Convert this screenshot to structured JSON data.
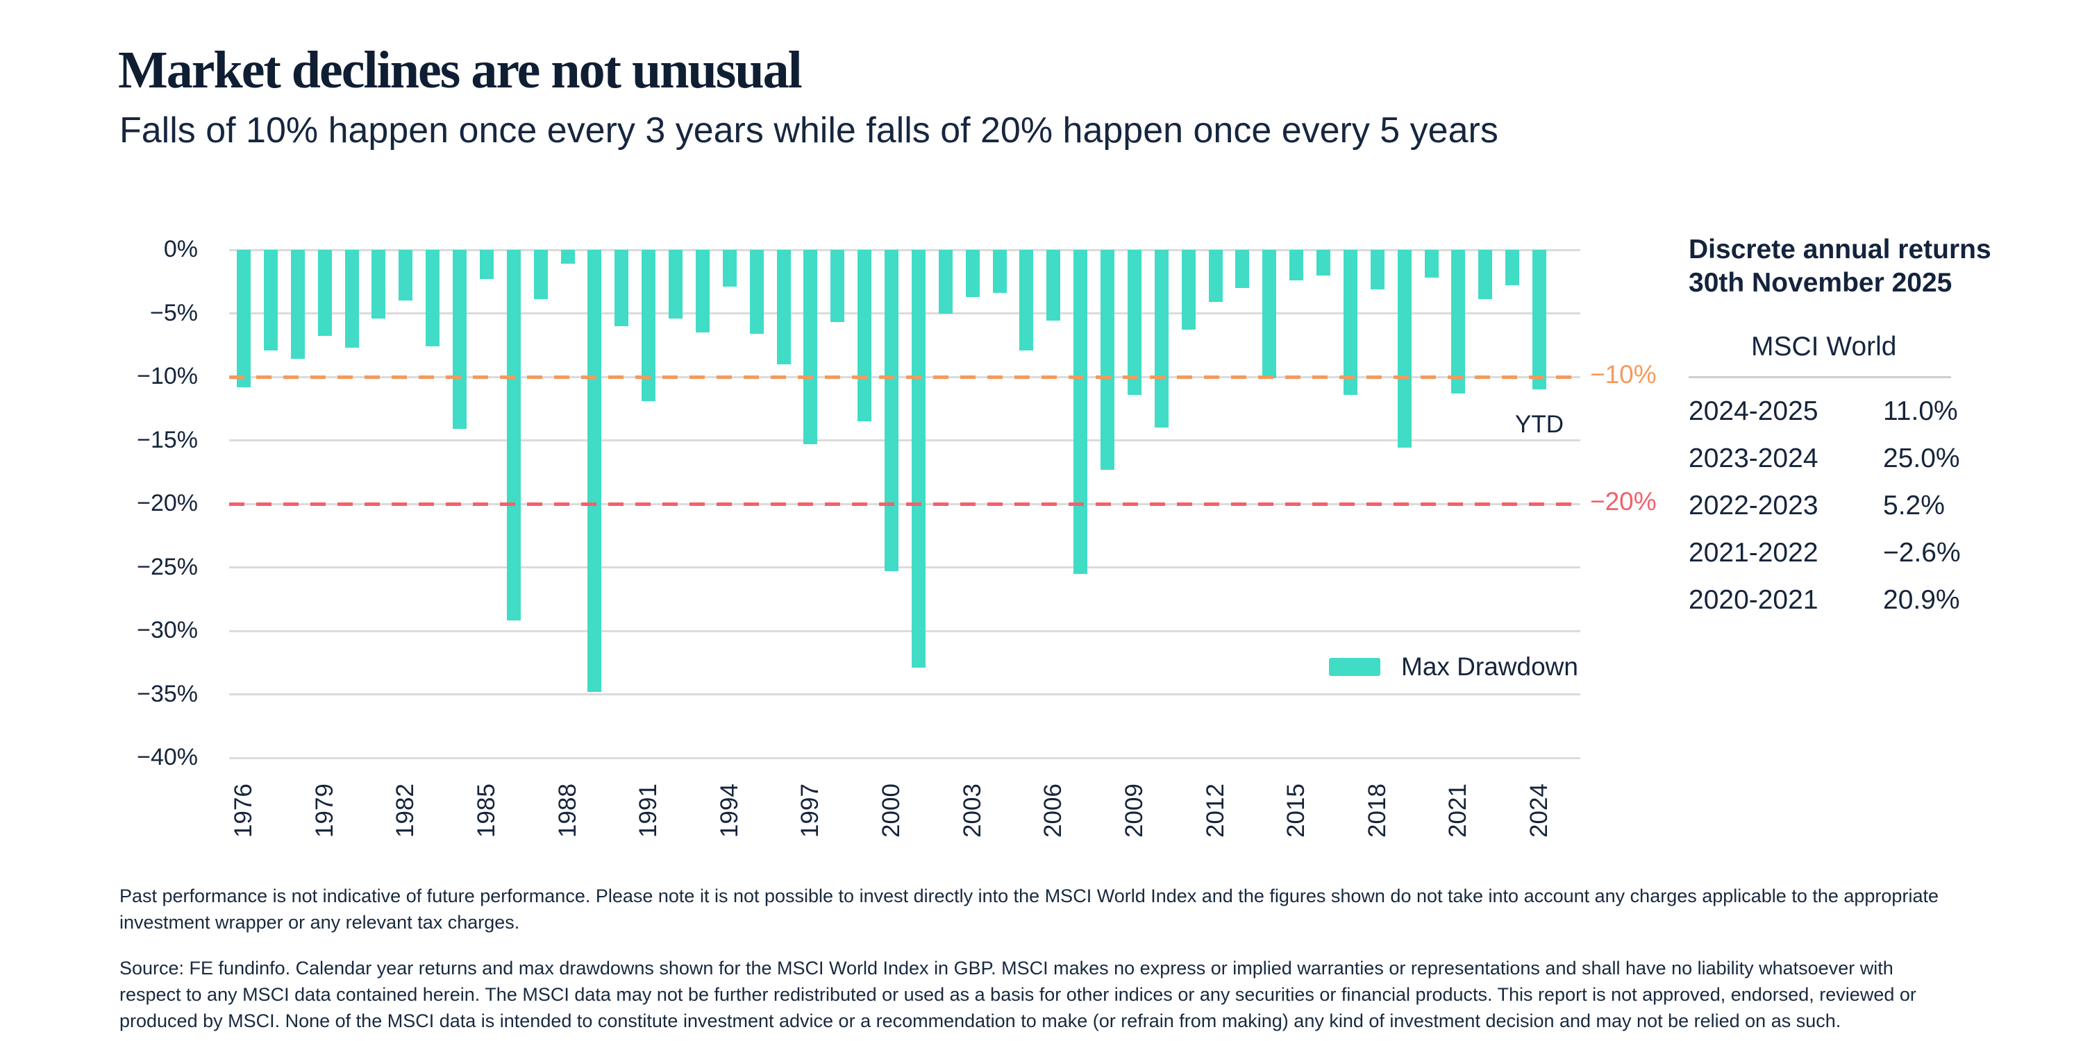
{
  "header": {
    "title": "Market declines are not unusual",
    "subtitle": "Falls of 10% happen once every 3 years while falls of 20% happen once every 5 years"
  },
  "chart_data": {
    "type": "bar",
    "title": "Max drawdown per calendar year, MSCI World Index in GBP",
    "xlabel": "",
    "ylabel": "",
    "ylim": [
      -40,
      0
    ],
    "grid": "horizontal",
    "bar_color": "#40DCC6",
    "gridline_color": "#DBDBDB",
    "y_tick_labels": [
      "0%",
      "−5%",
      "−10%",
      "−15%",
      "−20%",
      "−25%",
      "−30%",
      "−35%",
      "−40%"
    ],
    "x_tick_every": 3,
    "categories": [
      1976,
      1977,
      1978,
      1979,
      1980,
      1981,
      1982,
      1983,
      1984,
      1985,
      1986,
      1987,
      1988,
      1989,
      1990,
      1991,
      1992,
      1993,
      1994,
      1995,
      1996,
      1997,
      1998,
      1999,
      2000,
      2001,
      2002,
      2003,
      2004,
      2005,
      2006,
      2007,
      2008,
      2009,
      2010,
      2011,
      2012,
      2013,
      2014,
      2015,
      2016,
      2017,
      2018,
      2019,
      2020,
      2021,
      2022,
      2023,
      2024
    ],
    "series": [
      {
        "name": "Max Drawdown",
        "values": [
          -10.8,
          -7.9,
          -8.6,
          -6.8,
          -7.7,
          -5.4,
          -4.0,
          -7.6,
          -14.1,
          -2.3,
          -29.2,
          -3.9,
          -1.1,
          -34.8,
          -6.0,
          -11.9,
          -5.4,
          -6.5,
          -2.9,
          -6.6,
          -9.0,
          -15.3,
          -5.7,
          -13.5,
          -25.3,
          -32.9,
          -5.0,
          -3.7,
          -3.4,
          -7.9,
          -5.6,
          -25.5,
          -17.3,
          -11.4,
          -14.0,
          -6.3,
          -4.1,
          -3.0,
          -10.1,
          -2.4,
          -2.0,
          -11.4,
          -3.1,
          -15.6,
          -2.2,
          -11.3,
          -3.9,
          -2.8,
          -11.0
        ]
      }
    ],
    "thresholds": [
      {
        "value": -10,
        "label": "−10%",
        "color": "#F49A5C"
      },
      {
        "value": -20,
        "label": "−20%",
        "color": "#F4606A"
      }
    ],
    "annotations": [
      {
        "text": "YTD",
        "category": 2024
      }
    ],
    "legend": {
      "label": "Max Drawdown",
      "position": "bottom-right"
    }
  },
  "side_table": {
    "title": "Discrete annual returns 30th November 2025",
    "column_header": "MSCI World",
    "rows": [
      {
        "period": "2024-2025",
        "value": "11.0%"
      },
      {
        "period": "2023-2024",
        "value": "25.0%"
      },
      {
        "period": "2022-2023",
        "value": "5.2%"
      },
      {
        "period": "2021-2022",
        "value": "−2.6%"
      },
      {
        "period": "2020-2021",
        "value": "20.9%"
      }
    ]
  },
  "footer": {
    "disclaimer_lines": [
      "Past performance is not indicative of future performance. Please note it is not possible to invest directly into the MSCI World Index and the figures shown do not take into account any charges applicable to the appropriate",
      "investment wrapper or any relevant tax charges."
    ],
    "source_lines": [
      "Source: FE fundinfo. Calendar year returns and max drawdowns shown for the MSCI World Index in GBP. MSCI makes no express or implied warranties or representations and shall have no liability whatsoever with",
      "respect to any MSCI data contained herein. The MSCI data may not be further redistributed or used as a basis for other indices or any securities or financial products. This report is not approved, endorsed, reviewed or",
      "produced by MSCI. None of the MSCI data is intended to constitute investment advice or a recommendation to make (or refrain from making) any kind of investment decision and may not be relied on as such."
    ]
  },
  "colors": {
    "bar_teal": "#40DCC6",
    "threshold_orange": "#F49A5C",
    "threshold_red": "#F4606A",
    "text_navy": "#15243B",
    "gridline_gray": "#DBDBDB"
  }
}
